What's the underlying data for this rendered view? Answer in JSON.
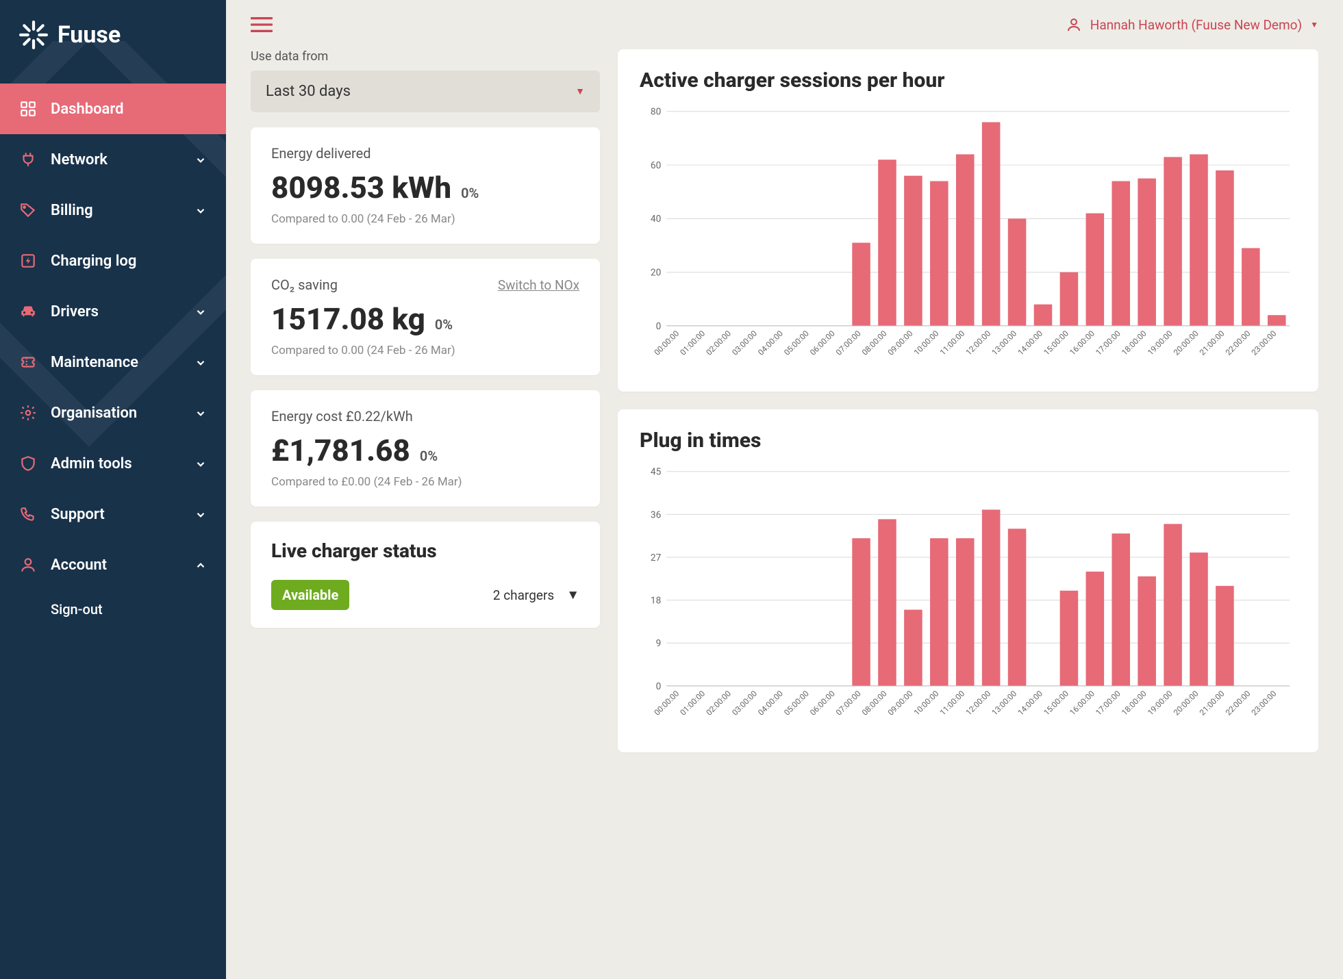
{
  "brand": {
    "name": "Fuuse"
  },
  "user": {
    "display": "Hannah Haworth (Fuuse New Demo)"
  },
  "sidebar": {
    "items": [
      {
        "label": "Dashboard",
        "icon": "dashboard",
        "active": true,
        "expandable": false
      },
      {
        "label": "Network",
        "icon": "plug",
        "expandable": true
      },
      {
        "label": "Billing",
        "icon": "tag",
        "expandable": true
      },
      {
        "label": "Charging log",
        "icon": "charging",
        "expandable": false
      },
      {
        "label": "Drivers",
        "icon": "car",
        "expandable": true
      },
      {
        "label": "Maintenance",
        "icon": "ticket",
        "expandable": true
      },
      {
        "label": "Organisation",
        "icon": "gear",
        "expandable": true
      },
      {
        "label": "Admin tools",
        "icon": "shield",
        "expandable": true
      },
      {
        "label": "Support",
        "icon": "phone",
        "expandable": true
      },
      {
        "label": "Account",
        "icon": "user",
        "expandable": true,
        "expanded": true
      }
    ],
    "account_sub": "Sign-out"
  },
  "filter": {
    "label": "Use data from",
    "selected": "Last 30 days"
  },
  "metrics": {
    "energy": {
      "title": "Energy delivered",
      "value": "8098.53 kWh",
      "pct": "0%",
      "compare": "Compared to 0.00 (24 Feb - 26 Mar)"
    },
    "co2": {
      "title": "CO₂ saving",
      "switch_label": "Switch to NOx",
      "value": "1517.08 kg",
      "pct": "0%",
      "compare": "Compared to 0.00 (24 Feb - 26 Mar)"
    },
    "cost": {
      "title": "Energy cost £0.22/kWh",
      "value": "£1,781.68",
      "pct": "0%",
      "compare": "Compared to £0.00 (24 Feb - 26 Mar)"
    }
  },
  "live": {
    "title": "Live charger status",
    "badge": "Available",
    "badge_color": "#6eab1e",
    "count_label": "2 chargers"
  },
  "charts": {
    "sessions": {
      "type": "bar",
      "title": "Active charger sessions per hour",
      "categories": [
        "00:00:00",
        "01:00:00",
        "02:00:00",
        "03:00:00",
        "04:00:00",
        "05:00:00",
        "06:00:00",
        "07:00:00",
        "08:00:00",
        "09:00:00",
        "10:00:00",
        "11:00:00",
        "12:00:00",
        "13:00:00",
        "14:00:00",
        "15:00:00",
        "16:00:00",
        "17:00:00",
        "18:00:00",
        "19:00:00",
        "20:00:00",
        "21:00:00",
        "22:00:00",
        "23:00:00"
      ],
      "values": [
        0,
        0,
        0,
        0,
        0,
        0,
        0,
        31,
        62,
        56,
        54,
        64,
        76,
        40,
        8,
        20,
        42,
        54,
        55,
        63,
        64,
        58,
        29,
        4
      ],
      "ylim": [
        0,
        80
      ],
      "yticks": [
        0,
        20,
        40,
        60,
        80
      ],
      "bar_color": "#e76a77",
      "grid_color": "#d8d8d8",
      "axis_color": "#bbbbbb",
      "background_color": "#ffffff",
      "bar_width_ratio": 0.7,
      "label_fontsize": 12,
      "tick_fontsize": 14
    },
    "plugins": {
      "type": "bar",
      "title": "Plug in times",
      "categories": [
        "00:00:00",
        "01:00:00",
        "02:00:00",
        "03:00:00",
        "04:00:00",
        "05:00:00",
        "06:00:00",
        "07:00:00",
        "08:00:00",
        "09:00:00",
        "10:00:00",
        "11:00:00",
        "12:00:00",
        "13:00:00",
        "14:00:00",
        "15:00:00",
        "16:00:00",
        "17:00:00",
        "18:00:00",
        "19:00:00",
        "20:00:00",
        "21:00:00",
        "22:00:00",
        "23:00:00"
      ],
      "values": [
        0,
        0,
        0,
        0,
        0,
        0,
        0,
        31,
        35,
        16,
        31,
        31,
        37,
        33,
        0,
        20,
        24,
        32,
        23,
        34,
        28,
        21,
        0,
        0
      ],
      "ylim": [
        0,
        45
      ],
      "yticks": [
        0,
        9,
        18,
        27,
        36,
        45
      ],
      "bar_color": "#e76a77",
      "grid_color": "#d8d8d8",
      "axis_color": "#bbbbbb",
      "background_color": "#ffffff",
      "bar_width_ratio": 0.7,
      "label_fontsize": 12,
      "tick_fontsize": 14
    }
  },
  "colors": {
    "sidebar_bg": "#18324a",
    "accent": "#e76a77",
    "page_bg": "#eeece7",
    "card_bg": "#ffffff",
    "select_bg": "#e1ded7",
    "text_muted": "#888888"
  }
}
